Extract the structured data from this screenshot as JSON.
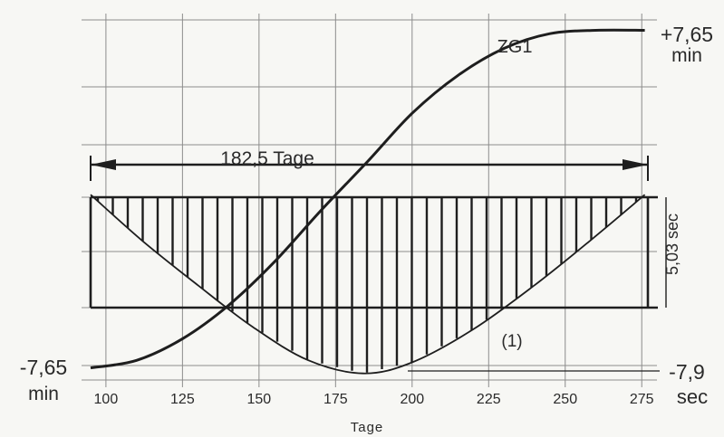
{
  "chart_data": {
    "type": "line",
    "xlabel": "Tage",
    "x_ticks": [
      100,
      125,
      150,
      175,
      200,
      225,
      250,
      275
    ],
    "xlim": [
      95,
      277
    ],
    "ylim": [
      -8.2,
      8.0
    ],
    "grid": true,
    "series": [
      {
        "name": "ZG1",
        "x": [
          95,
          110,
          125,
          140,
          155,
          170,
          185.5,
          200,
          215,
          230,
          245,
          260,
          276
        ],
        "y": [
          -7.65,
          -7.31,
          -6.33,
          -4.82,
          -2.85,
          -0.55,
          1.71,
          3.89,
          5.61,
          6.83,
          7.5,
          7.65,
          7.65
        ]
      },
      {
        "name": "(1)",
        "x": [
          95,
          112,
          130,
          148,
          166,
          184,
          200,
          220,
          240,
          258,
          276
        ],
        "y": [
          0.2,
          -1.9,
          -3.9,
          -5.8,
          -7.3,
          -7.9,
          -7.4,
          -5.9,
          -3.9,
          -1.9,
          0.2
        ]
      }
    ],
    "annotations": {
      "span": "182,5 Tage",
      "top_value": "+7,65",
      "top_unit": "min",
      "left_value": "-7,65",
      "left_unit": "min",
      "right_value": "-7,9",
      "right_unit": "sec",
      "box_height": "5,03 sec",
      "curve1_label": "ZG1",
      "curve2_label": "(1)"
    }
  },
  "colors": {
    "ink": "#1e1e1e",
    "grid": "#8c8c8c",
    "paper": "#f7f7f4"
  }
}
